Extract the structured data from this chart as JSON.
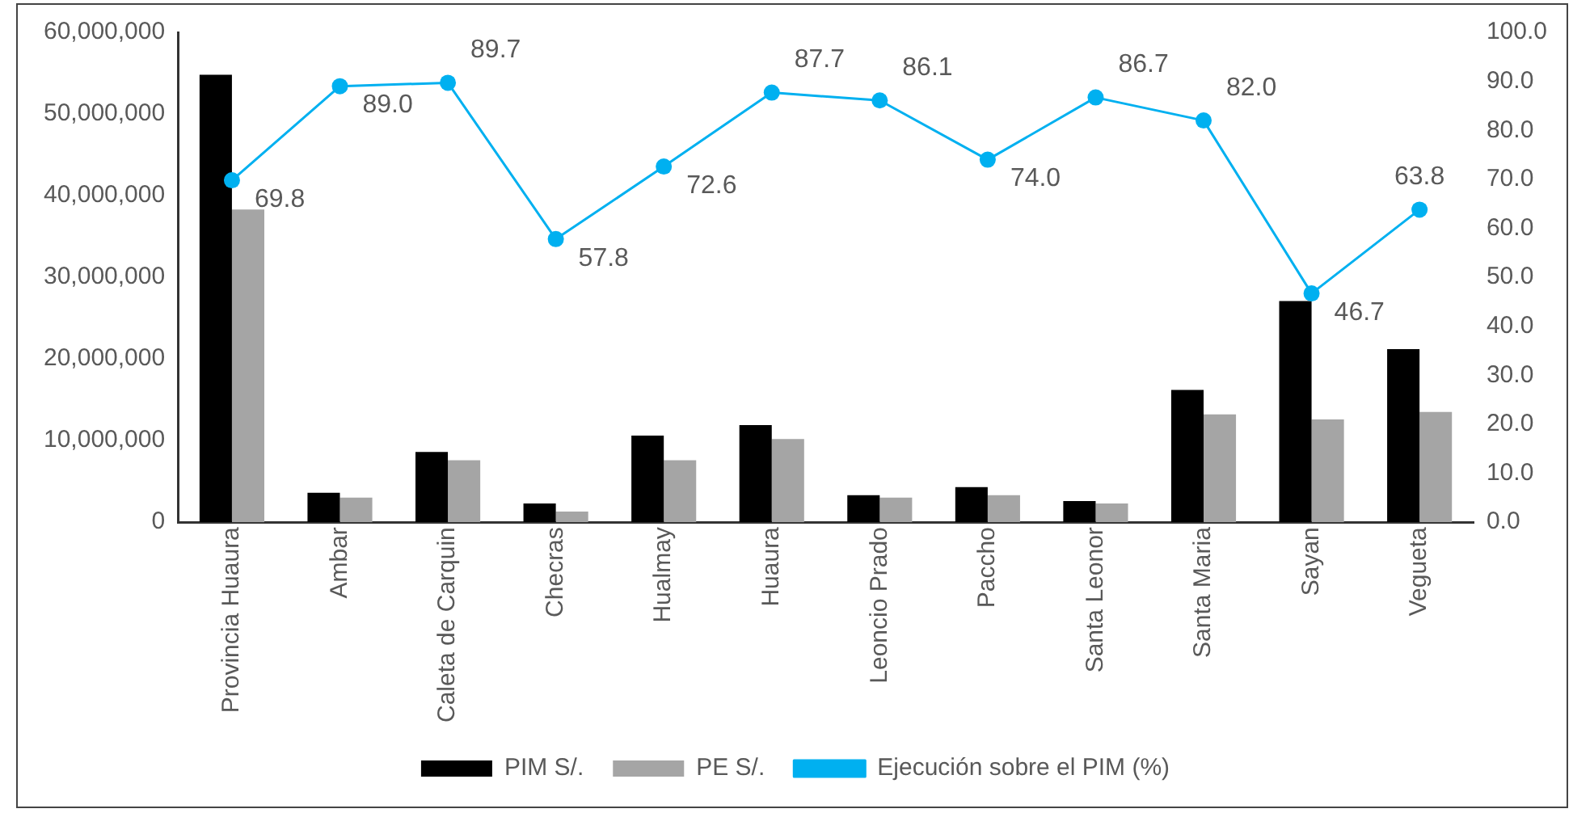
{
  "chart_data": {
    "type": "bar",
    "categories": [
      "Provincia Huaura",
      "Ambar",
      "Caleta de Carquin",
      "Checras",
      "Hualmay",
      "Huaura",
      "Leoncio Prado",
      "Paccho",
      "Santa Leonor",
      "Santa Maria",
      "Sayan",
      "Vegueta"
    ],
    "series": [
      {
        "name": "PIM S/.",
        "color": "#000000",
        "values": [
          54800000,
          3600000,
          8600000,
          2300000,
          10600000,
          11900000,
          3300000,
          4300000,
          2600000,
          16200000,
          27100000,
          21200000
        ]
      },
      {
        "name": "PE S/.",
        "color": "#a5a5a5",
        "values": [
          38300000,
          3000000,
          7600000,
          1300000,
          7600000,
          10200000,
          3000000,
          3300000,
          2300000,
          13200000,
          12600000,
          13500000
        ]
      },
      {
        "name": "Ejecución sobre el PIM (%)",
        "type": "line",
        "axis": "y2",
        "color": "#00b0f0",
        "marker": "circle",
        "values": [
          69.8,
          89.0,
          89.7,
          57.8,
          72.6,
          87.7,
          86.1,
          74.0,
          86.7,
          82.0,
          46.7,
          63.8
        ],
        "value_labels": [
          "69.8",
          "89.0",
          "89.7",
          "57.8",
          "72.6",
          "87.7",
          "86.1",
          "74.0",
          "86.7",
          "82.0",
          "46.7",
          "63.8"
        ]
      }
    ],
    "ylim": [
      0,
      60000000
    ],
    "yticks": [
      {
        "value": 0,
        "label": "0"
      },
      {
        "value": 10000000,
        "label": "10,000,000"
      },
      {
        "value": 20000000,
        "label": "20,000,000"
      },
      {
        "value": 30000000,
        "label": "30,000,000"
      },
      {
        "value": 40000000,
        "label": "40,000,000"
      },
      {
        "value": 50000000,
        "label": "50,000,000"
      },
      {
        "value": 60000000,
        "label": "60,000,000"
      }
    ],
    "y2lim": [
      0,
      100
    ],
    "y2ticks": [
      {
        "value": 0,
        "label": "0.0"
      },
      {
        "value": 10,
        "label": "10.0"
      },
      {
        "value": 20,
        "label": "20.0"
      },
      {
        "value": 30,
        "label": "30.0"
      },
      {
        "value": 40,
        "label": "40.0"
      },
      {
        "value": 50,
        "label": "50.0"
      },
      {
        "value": 60,
        "label": "60.0"
      },
      {
        "value": 70,
        "label": "70.0"
      },
      {
        "value": 80,
        "label": "80.0"
      },
      {
        "value": 90,
        "label": "90.0"
      },
      {
        "value": 100,
        "label": "100.0"
      }
    ],
    "grid": false,
    "legend": "bottom"
  }
}
